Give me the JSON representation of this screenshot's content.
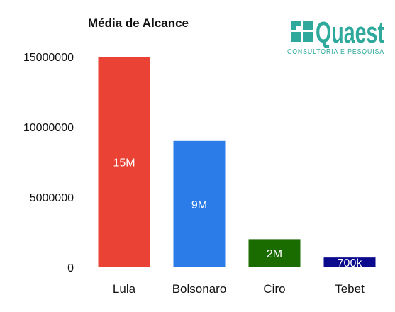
{
  "logo": {
    "wordmark": "Quaest",
    "tagline": "CONSULTORIA E PESQUISA",
    "color": "#2fa99b"
  },
  "chart_data": {
    "type": "bar",
    "title": "Média de Alcance",
    "xlabel": "",
    "ylabel": "",
    "ylim": [
      0,
      15000000
    ],
    "yticks": [
      "0",
      "5000000",
      "10000000",
      "15000000"
    ],
    "grid": false,
    "categories": [
      "Lula",
      "Bolsonaro",
      "Ciro",
      "Tebet"
    ],
    "values": [
      15000000,
      9000000,
      2000000,
      700000
    ],
    "data_labels": [
      "15M",
      "9M",
      "2M",
      "700k"
    ],
    "colors": [
      "#ea4335",
      "#2b7ce9",
      "#1a6b00",
      "#0b0a8c"
    ]
  }
}
